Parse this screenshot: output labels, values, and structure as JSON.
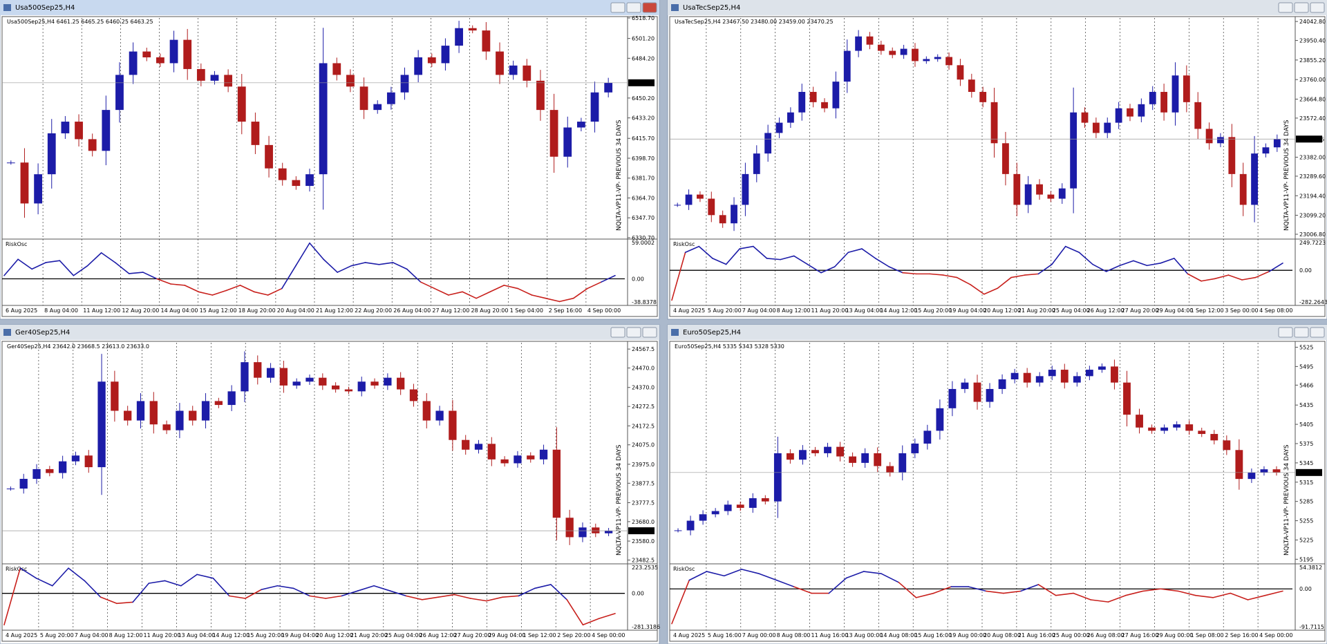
{
  "windows": [
    {
      "title": "Usa500Sep25,H4",
      "quote": "Usa500Sep25,H4  6461.25 6465.25 6460.25 6463.25",
      "active": true,
      "ylim": [
        6330.7,
        6518.7
      ],
      "yticks": [
        {
          "value": 6518.7,
          "label": "6518.70"
        },
        {
          "value": 6501.2,
          "label": "6501.20"
        },
        {
          "value": 6484.2,
          "label": "6484.20"
        },
        {
          "value": 6450.2,
          "label": "6450.20"
        },
        {
          "value": 6433.2,
          "label": "6433.20"
        },
        {
          "value": 6415.7,
          "label": "6415.70"
        },
        {
          "value": 6398.7,
          "label": "6398.70"
        },
        {
          "value": 6381.7,
          "label": "6381.70"
        },
        {
          "value": 6364.7,
          "label": "6364.70"
        },
        {
          "value": 6347.7,
          "label": "6347.70"
        },
        {
          "value": 6330.7,
          "label": "6330.70"
        }
      ],
      "current": {
        "value": 6463.25,
        "label": "6463.25"
      },
      "closes": [
        6395,
        6360,
        6385,
        6420,
        6430,
        6415,
        6405,
        6440,
        6470,
        6490,
        6485,
        6480,
        6500,
        6475,
        6465,
        6470,
        6460,
        6430,
        6410,
        6390,
        6380,
        6375,
        6385,
        6480,
        6470,
        6460,
        6440,
        6445,
        6455,
        6470,
        6485,
        6480,
        6495,
        6510,
        6508,
        6490,
        6470,
        6478,
        6465,
        6440,
        6400,
        6425,
        6430,
        6455,
        6463.25
      ],
      "osc_name": "RiskOsc",
      "osc_ticks": [
        {
          "value": 59.0002,
          "label": "59.0002"
        },
        {
          "value": 0,
          "label": "0.00"
        },
        {
          "value": -38.8378,
          "label": "-38.8378"
        }
      ],
      "osc": [
        5,
        30,
        15,
        25,
        28,
        5,
        20,
        40,
        25,
        8,
        10,
        0,
        -8,
        -10,
        -20,
        -25,
        -18,
        -10,
        -20,
        -25,
        -15,
        20,
        55,
        30,
        10,
        20,
        25,
        22,
        25,
        15,
        -5,
        -15,
        -25,
        -20,
        -30,
        -20,
        -10,
        -15,
        -25,
        -30,
        -35,
        -30,
        -15,
        -5,
        5
      ],
      "watermark": "NQLTA-VP11-VP- PREVIOUS 34 DAYS",
      "times": [
        "6 Aug 2025",
        "8 Aug 04:00",
        "11 Aug 12:00",
        "12 Aug 20:00",
        "14 Aug 04:00",
        "15 Aug 12:00",
        "18 Aug 20:00",
        "20 Aug 04:00",
        "21 Aug 12:00",
        "22 Aug 20:00",
        "26 Aug 04:00",
        "27 Aug 12:00",
        "28 Aug 20:00",
        "1 Sep 04:00",
        "2 Sep 16:00",
        "4 Sep 00:00"
      ]
    },
    {
      "title": "UsaTecSep25,H4",
      "quote": "UsaTecSep25,H4  23467.50 23480.00 23459.00 23470.25",
      "active": false,
      "ylim": [
        22990,
        24060
      ],
      "yticks": [
        {
          "value": 24042.8,
          "label": "24042.80"
        },
        {
          "value": 23950.4,
          "label": "23950.40"
        },
        {
          "value": 23855.2,
          "label": "23855.20"
        },
        {
          "value": 23760,
          "label": "23760.00"
        },
        {
          "value": 23664.8,
          "label": "23664.80"
        },
        {
          "value": 23572.4,
          "label": "23572.40"
        },
        {
          "value": 23382,
          "label": "23382.00"
        },
        {
          "value": 23289.6,
          "label": "23289.60"
        },
        {
          "value": 23194.4,
          "label": "23194.40"
        },
        {
          "value": 23099.2,
          "label": "23099.20"
        },
        {
          "value": 23006.8,
          "label": "23006.80"
        }
      ],
      "current": {
        "value": 23470.25,
        "label": "23470.25"
      },
      "closes": [
        23150,
        23200,
        23180,
        23100,
        23060,
        23150,
        23300,
        23400,
        23500,
        23550,
        23600,
        23700,
        23650,
        23620,
        23750,
        23900,
        23970,
        23930,
        23900,
        23880,
        23910,
        23850,
        23860,
        23870,
        23830,
        23760,
        23700,
        23650,
        23450,
        23300,
        23150,
        23250,
        23200,
        23180,
        23230,
        23600,
        23550,
        23500,
        23550,
        23620,
        23580,
        23640,
        23700,
        23600,
        23780,
        23650,
        23520,
        23450,
        23480,
        23300,
        23150,
        23400,
        23430,
        23470.25
      ],
      "osc_name": "RiskOsc",
      "osc_ticks": [
        {
          "value": 249.7223,
          "label": "249.7223"
        },
        {
          "value": 0,
          "label": "0.00"
        },
        {
          "value": -282.2643,
          "label": "-282.2643"
        }
      ],
      "osc": [
        -250,
        150,
        200,
        100,
        50,
        180,
        200,
        100,
        90,
        120,
        50,
        -20,
        30,
        150,
        180,
        100,
        30,
        -20,
        -30,
        -30,
        -40,
        -60,
        -120,
        -200,
        -150,
        -60,
        -40,
        -30,
        50,
        200,
        150,
        50,
        -10,
        40,
        80,
        40,
        60,
        100,
        -30,
        -90,
        -70,
        -40,
        -80,
        -60,
        -10,
        60
      ],
      "watermark": "NQLTA-VP11-VP- PREVIOUS 34 DAYS",
      "times": [
        "4 Aug 2025",
        "5 Aug 20:00",
        "7 Aug 04:00",
        "8 Aug 12:00",
        "11 Aug 20:00",
        "13 Aug 04:00",
        "14 Aug 12:00",
        "15 Aug 20:00",
        "19 Aug 04:00",
        "20 Aug 12:00",
        "21 Aug 20:00",
        "25 Aug 04:00",
        "26 Aug 12:00",
        "27 Aug 20:00",
        "29 Aug 04:00",
        "1 Sep 12:00",
        "3 Sep 00:00",
        "4 Sep 08:00"
      ]
    },
    {
      "title": "Ger40Sep25,H4",
      "quote": "Ger40Sep25,H4  23642.0 23668.5 23613.0 23633.0",
      "active": false,
      "ylim": [
        23470,
        24600
      ],
      "yticks": [
        {
          "value": 24567.5,
          "label": "24567.5"
        },
        {
          "value": 24470,
          "label": "24470.0"
        },
        {
          "value": 24370,
          "label": "24370.0"
        },
        {
          "value": 24272.5,
          "label": "24272.5"
        },
        {
          "value": 24172.5,
          "label": "24172.5"
        },
        {
          "value": 24075,
          "label": "24075.0"
        },
        {
          "value": 23975,
          "label": "23975.0"
        },
        {
          "value": 23877.5,
          "label": "23877.5"
        },
        {
          "value": 23777.5,
          "label": "23777.5"
        },
        {
          "value": 23680,
          "label": "23680.0"
        },
        {
          "value": 23580,
          "label": "23580.0"
        },
        {
          "value": 23482.5,
          "label": "23482.5"
        }
      ],
      "current": {
        "value": 23633,
        "label": "23633.0"
      },
      "closes": [
        23850,
        23900,
        23950,
        23930,
        23990,
        24020,
        23960,
        24400,
        24250,
        24200,
        24300,
        24180,
        24150,
        24250,
        24200,
        24300,
        24280,
        24350,
        24500,
        24420,
        24470,
        24380,
        24400,
        24420,
        24380,
        24360,
        24350,
        24400,
        24380,
        24420,
        24360,
        24300,
        24200,
        24250,
        24100,
        24050,
        24080,
        24000,
        23980,
        24020,
        24000,
        24050,
        23700,
        23600,
        23650,
        23620,
        23633
      ],
      "osc_name": "RiskOsc",
      "osc_ticks": [
        {
          "value": 223.2535,
          "label": "223.2535"
        },
        {
          "value": 0,
          "label": "0.00"
        },
        {
          "value": -281.3186,
          "label": "-281.3186"
        }
      ],
      "osc": [
        -250,
        200,
        120,
        60,
        200,
        100,
        -30,
        -80,
        -70,
        80,
        100,
        60,
        150,
        120,
        -20,
        -40,
        30,
        60,
        40,
        -20,
        -40,
        -20,
        20,
        60,
        20,
        -20,
        -50,
        -30,
        -10,
        -40,
        -60,
        -30,
        -20,
        40,
        70,
        -50,
        -250,
        -200,
        -160
      ],
      "watermark": "NQLTA-VP11-VP- PREVIOUS 34 DAYS",
      "times": [
        "4 Aug 2025",
        "5 Aug 20:00",
        "7 Aug 04:00",
        "8 Aug 12:00",
        "11 Aug 20:00",
        "13 Aug 04:00",
        "14 Aug 12:00",
        "15 Aug 20:00",
        "19 Aug 04:00",
        "20 Aug 12:00",
        "21 Aug 20:00",
        "25 Aug 04:00",
        "26 Aug 12:00",
        "27 Aug 20:00",
        "29 Aug 04:00",
        "1 Sep 12:00",
        "2 Sep 20:00",
        "4 Sep 00:00"
      ]
    },
    {
      "title": "Euro50Sep25,H4",
      "quote": "Euro50Sep25,H4  5335 5343 5328 5330",
      "active": false,
      "ylim": [
        5190,
        5532
      ],
      "yticks": [
        5525,
        5495,
        5466,
        5435,
        5405,
        5375,
        5345,
        5315,
        5285,
        5255,
        5225,
        5195
      ],
      "current": {
        "value": 5330,
        "label": "5330"
      },
      "closes": [
        5240,
        5255,
        5265,
        5270,
        5280,
        5275,
        5290,
        5285,
        5360,
        5350,
        5365,
        5360,
        5370,
        5355,
        5345,
        5360,
        5340,
        5330,
        5360,
        5375,
        5395,
        5430,
        5460,
        5470,
        5440,
        5460,
        5475,
        5485,
        5470,
        5480,
        5490,
        5470,
        5480,
        5490,
        5495,
        5470,
        5420,
        5400,
        5395,
        5400,
        5405,
        5395,
        5390,
        5380,
        5365,
        5320,
        5330,
        5335,
        5330
      ],
      "osc_name": "RiskOsc",
      "osc_ticks": [
        {
          "value": 54.3812,
          "label": "54.3812"
        },
        {
          "value": 0,
          "label": "0.00"
        },
        {
          "value": -91.7115,
          "label": "-91.7115"
        }
      ],
      "osc": [
        -80,
        20,
        40,
        30,
        45,
        35,
        20,
        5,
        -10,
        -10,
        25,
        40,
        35,
        15,
        -20,
        -10,
        5,
        5,
        -5,
        -10,
        -5,
        10,
        -15,
        -10,
        -25,
        -30,
        -15,
        -5,
        0,
        -5,
        -15,
        -20,
        -10,
        -25,
        -15,
        -5
      ],
      "watermark": "NQLTA-VP11-VP- PREVIOUS 34 DAYS",
      "times": [
        "4 Aug 2025",
        "5 Aug 16:00",
        "7 Aug 00:00",
        "8 Aug 08:00",
        "11 Aug 16:00",
        "13 Aug 00:00",
        "14 Aug 08:00",
        "15 Aug 16:00",
        "19 Aug 00:00",
        "20 Aug 08:00",
        "21 Aug 16:00",
        "25 Aug 00:00",
        "26 Aug 08:00",
        "27 Aug 16:00",
        "29 Aug 00:00",
        "1 Sep 08:00",
        "2 Sep 16:00",
        "4 Sep 00:00"
      ]
    }
  ]
}
